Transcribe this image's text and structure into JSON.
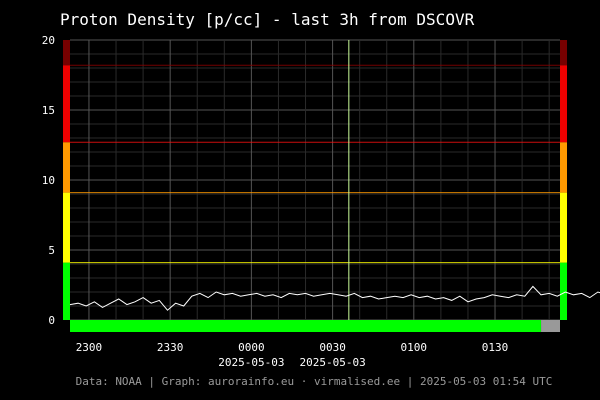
{
  "chart_data": {
    "type": "line",
    "title": "Proton Density [p/cc] - last 3h from DSCOVR",
    "xlabel": "",
    "ylabel": "",
    "ylim": [
      0,
      20
    ],
    "y_ticks": [
      0,
      5,
      10,
      15,
      20
    ],
    "x_range": [
      "2025-05-02 22:53",
      "2025-05-03 01:54"
    ],
    "x_ticks": [
      {
        "t": "2025-05-02 23:00",
        "label": "2300",
        "sublabel": ""
      },
      {
        "t": "2025-05-02 23:30",
        "label": "2330",
        "sublabel": ""
      },
      {
        "t": "2025-05-03 00:00",
        "label": "0000",
        "sublabel": "2025-05-03"
      },
      {
        "t": "2025-05-03 00:30",
        "label": "0030",
        "sublabel": "2025-05-03"
      },
      {
        "t": "2025-05-03 01:00",
        "label": "0100",
        "sublabel": ""
      },
      {
        "t": "2025-05-03 01:30",
        "label": "0130",
        "sublabel": ""
      }
    ],
    "grid": true,
    "marker_time": "2025-05-03 00:36",
    "thresholds": [
      {
        "value": 4.1,
        "color": "#ffff00"
      },
      {
        "value": 9.1,
        "color": "#ff9900"
      },
      {
        "value": 12.7,
        "color": "#ee1111"
      },
      {
        "value": 18.2,
        "color": "#880000"
      }
    ],
    "side_bands": [
      {
        "from": 0,
        "to": 4.1,
        "color": "#00ff00"
      },
      {
        "from": 4.1,
        "to": 9.1,
        "color": "#ffff00"
      },
      {
        "from": 9.1,
        "to": 12.7,
        "color": "#ff9900"
      },
      {
        "from": 12.7,
        "to": 18.2,
        "color": "#ee0000"
      },
      {
        "from": 18.2,
        "to": 20,
        "color": "#770000"
      }
    ],
    "status_bar": [
      {
        "from": "2025-05-02 22:53",
        "to": "2025-05-03 01:47",
        "color": "#00ff00"
      },
      {
        "from": "2025-05-03 01:47",
        "to": "2025-05-03 01:54",
        "color": "#999999"
      }
    ],
    "series": [
      {
        "color": "#ffffff",
        "start": "2025-05-02 22:53",
        "step_minutes": 3,
        "values": [
          1.1,
          1.2,
          1.0,
          1.3,
          0.9,
          1.2,
          1.5,
          1.1,
          1.3,
          1.6,
          1.2,
          1.4,
          0.7,
          1.2,
          1.0,
          1.7,
          1.9,
          1.6,
          2.0,
          1.8,
          1.9,
          1.7,
          1.8,
          1.9,
          1.7,
          1.8,
          1.6,
          1.9,
          1.8,
          1.9,
          1.7,
          1.8,
          1.9,
          1.8,
          1.7,
          1.9,
          1.6,
          1.7,
          1.5,
          1.6,
          1.7,
          1.6,
          1.8,
          1.6,
          1.7,
          1.5,
          1.6,
          1.4,
          1.7,
          1.3,
          1.5,
          1.6,
          1.8,
          1.7,
          1.6,
          1.8,
          1.7,
          2.4,
          1.8,
          1.9,
          1.7,
          2.0,
          1.8,
          1.9,
          1.6,
          2.0,
          1.8,
          1.9,
          2.0,
          2.1,
          2.1
        ]
      }
    ]
  },
  "footer": "Data: NOAA | Graph: aurorainfo.eu · virmalised.ee | 2025-05-03 01:54 UTC"
}
